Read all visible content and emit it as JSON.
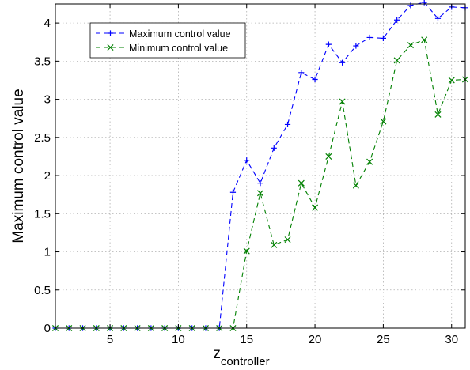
{
  "chart_data": {
    "type": "line",
    "xlabel": "z",
    "xlabel_sub": "controller",
    "ylabel": "Maximum control value",
    "xlim": [
      1,
      31
    ],
    "ylim": [
      0,
      4.25
    ],
    "xticks": [
      5,
      10,
      15,
      20,
      25,
      30
    ],
    "yticks": [
      0,
      0.5,
      1,
      1.5,
      2,
      2.5,
      3,
      3.5,
      4
    ],
    "grid": true,
    "legend_position": "top-left",
    "x": [
      1,
      2,
      3,
      4,
      5,
      6,
      7,
      8,
      9,
      10,
      11,
      12,
      13,
      14,
      15,
      16,
      17,
      18,
      19,
      20,
      21,
      22,
      23,
      24,
      25,
      26,
      27,
      28,
      29,
      30,
      31
    ],
    "series": [
      {
        "name": "Maximum control value",
        "color": "#0000ff",
        "marker": "plus",
        "linestyle": "dashed",
        "values": [
          0,
          0,
          0,
          0,
          0,
          0,
          0,
          0,
          0,
          0,
          0,
          0,
          0,
          1.78,
          2.2,
          1.9,
          2.36,
          2.67,
          3.35,
          3.26,
          3.72,
          3.48,
          3.7,
          3.81,
          3.8,
          4.04,
          4.23,
          4.27,
          4.06,
          4.21,
          4.2
        ]
      },
      {
        "name": "Minimum control value",
        "color": "#008000",
        "marker": "x",
        "linestyle": "dashed",
        "values": [
          0,
          0,
          0,
          0,
          0,
          0,
          0,
          0,
          0,
          0,
          0,
          0,
          0,
          0,
          1.01,
          1.77,
          1.09,
          1.16,
          1.9,
          1.58,
          2.25,
          2.97,
          1.87,
          2.18,
          2.71,
          3.51,
          3.71,
          3.78,
          2.8,
          3.25,
          3.26
        ]
      }
    ]
  }
}
